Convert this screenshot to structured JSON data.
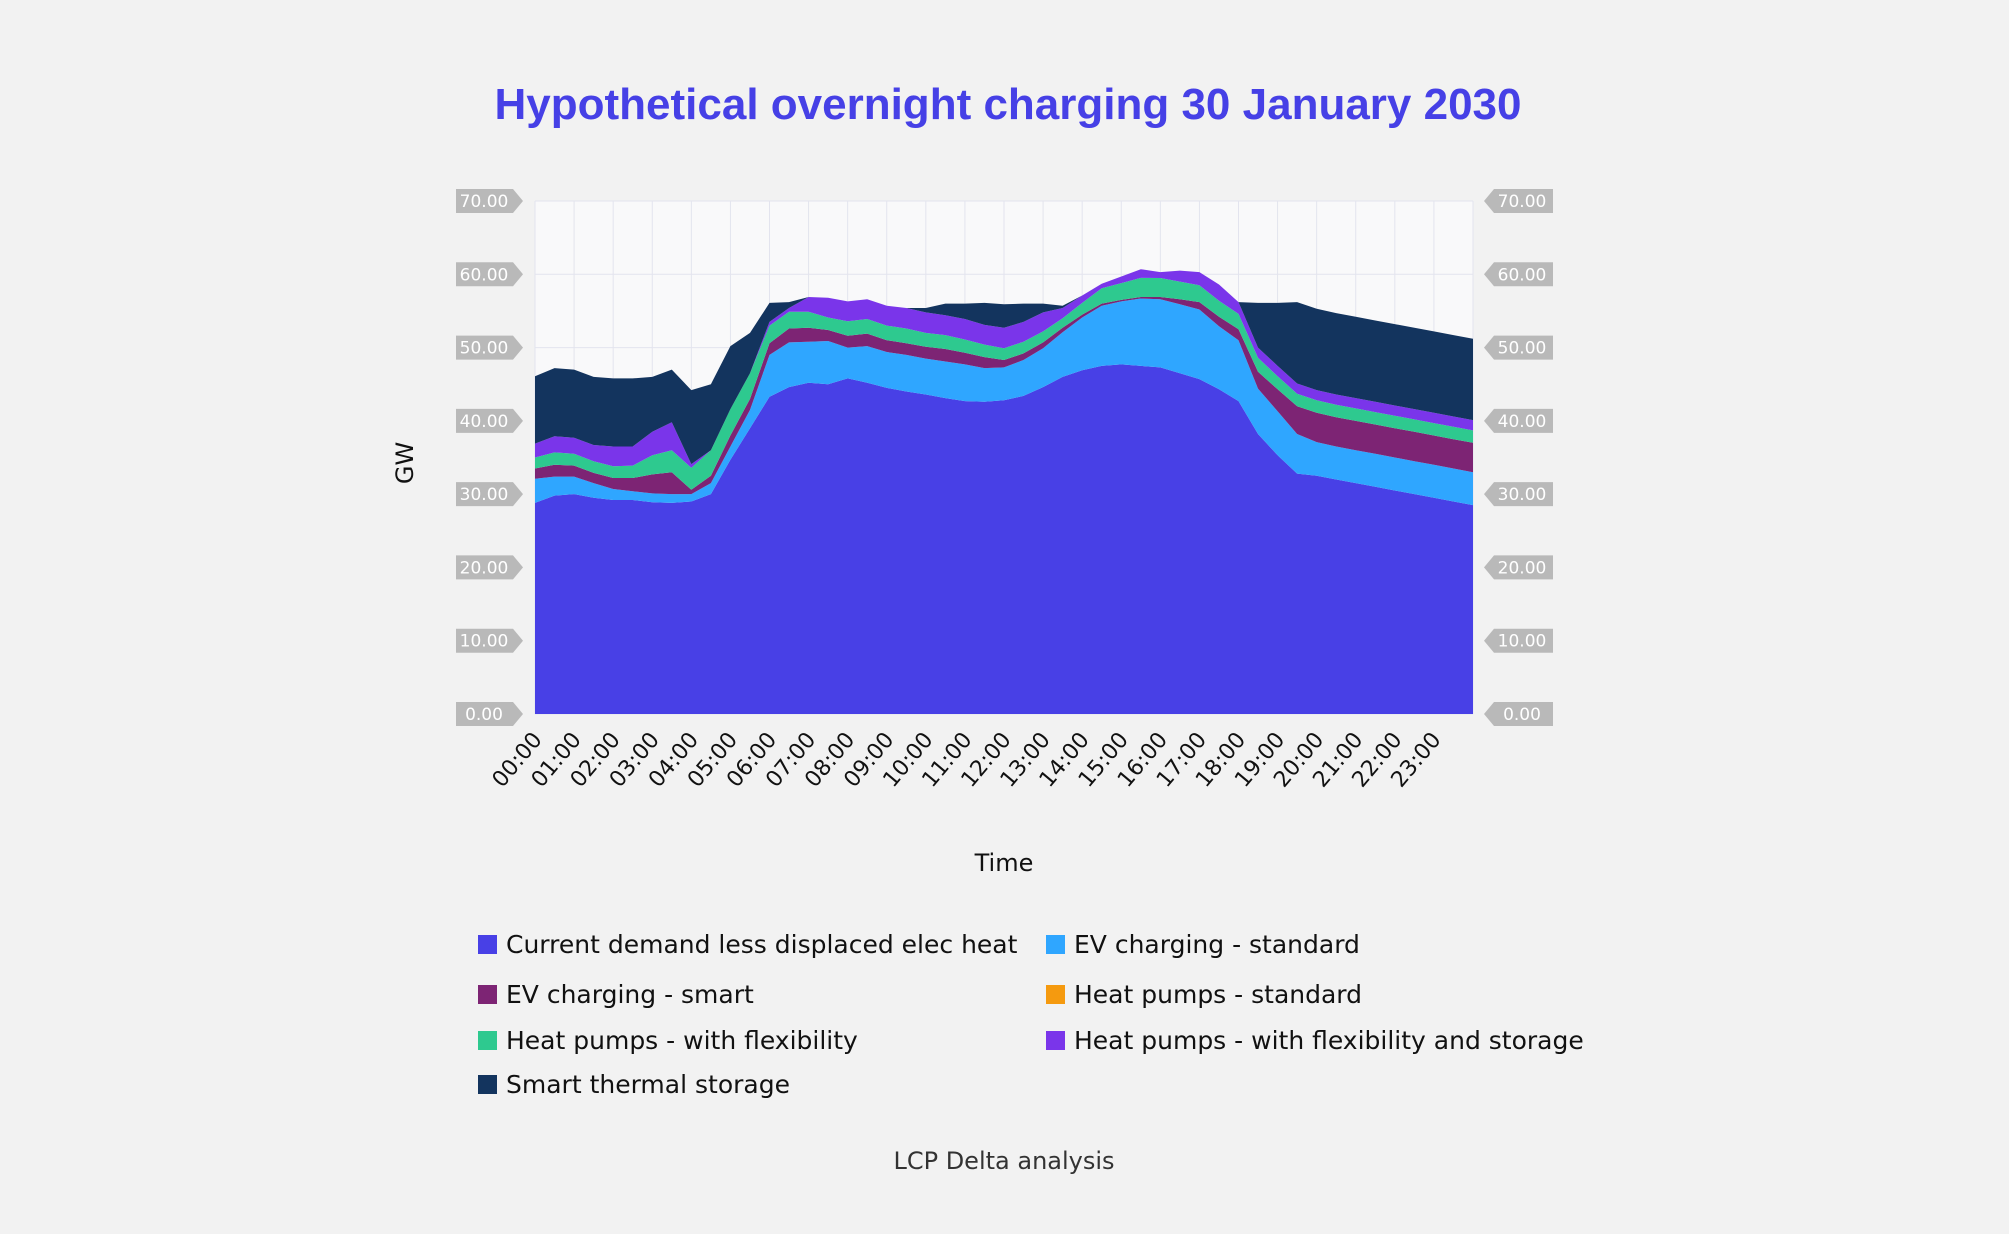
{
  "chart_data": {
    "type": "area",
    "stacked": true,
    "title": "Hypothetical overnight charging 30 January 2030",
    "xlabel": "Time",
    "ylabel": "GW",
    "ylim": [
      0,
      70
    ],
    "yticks": [
      "0.00",
      "10.00",
      "20.00",
      "30.00",
      "40.00",
      "50.00",
      "60.00",
      "70.00"
    ],
    "categories": [
      "00:00",
      "01:00",
      "02:00",
      "03:00",
      "04:00",
      "05:00",
      "06:00",
      "07:00",
      "08:00",
      "09:00",
      "10:00",
      "11:00",
      "12:00",
      "13:00",
      "14:00",
      "15:00",
      "16:00",
      "17:00",
      "18:00",
      "19:00",
      "20:00",
      "21:00",
      "22:00",
      "23:00"
    ],
    "x": [
      0,
      0.5,
      1,
      1.5,
      2,
      2.5,
      3,
      3.5,
      4,
      4.5,
      5,
      5.5,
      6,
      6.5,
      7,
      7.5,
      8,
      8.5,
      9,
      9.5,
      10,
      10.5,
      11,
      11.5,
      12,
      12.5,
      13,
      13.5,
      14,
      14.5,
      15,
      15.5,
      16,
      16.5,
      17,
      17.5,
      18,
      18.5,
      19,
      19.5,
      20,
      20.5,
      21,
      21.5,
      22,
      22.5,
      23,
      23.5,
      24
    ],
    "series": [
      {
        "name": "Current demand less displaced elec heat",
        "color": "#4840e6",
        "values": [
          28.8,
          29.8,
          30.0,
          29.5,
          29.2,
          29.2,
          28.9,
          28.8,
          29.0,
          30.0,
          34.7,
          39.0,
          43.3,
          44.6,
          45.2,
          45.0,
          45.8,
          45.2,
          44.5,
          44.0,
          43.6,
          43.1,
          42.7,
          42.6,
          42.8,
          43.4,
          44.6,
          46.0,
          46.9,
          47.5,
          47.7,
          47.5,
          47.3,
          46.5,
          45.7,
          44.3,
          42.7,
          38.2,
          35.3,
          32.8,
          32.5,
          32.0,
          31.5,
          31.0,
          30.5,
          30.0,
          29.5,
          29.0,
          28.5
        ]
      },
      {
        "name": "EV charging - standard",
        "color": "#2fa6ff",
        "values": [
          3.3,
          2.6,
          2.4,
          2.0,
          1.5,
          1.2,
          1.2,
          1.2,
          1.0,
          1.5,
          1.8,
          2.5,
          5.7,
          6.1,
          5.6,
          5.9,
          4.2,
          5.0,
          4.9,
          5.0,
          4.9,
          5.0,
          5.0,
          4.6,
          4.5,
          4.9,
          5.3,
          6.1,
          7.2,
          8.2,
          8.6,
          9.2,
          9.3,
          9.4,
          9.5,
          8.6,
          8.3,
          6.2,
          6.0,
          5.4,
          4.6,
          4.5,
          4.5,
          4.5,
          4.5,
          4.5,
          4.5,
          4.5,
          4.5
        ]
      },
      {
        "name": "EV charging - smart",
        "color": "#7d2474",
        "values": [
          1.4,
          1.6,
          1.5,
          1.4,
          1.5,
          1.8,
          2.6,
          3.0,
          0.6,
          1.0,
          1.5,
          1.5,
          1.6,
          1.9,
          1.9,
          1.5,
          1.6,
          1.7,
          1.6,
          1.6,
          1.6,
          1.7,
          1.6,
          1.5,
          1.0,
          0.9,
          0.8,
          0.6,
          0.4,
          0.3,
          0.2,
          0.2,
          0.3,
          0.7,
          1.0,
          1.3,
          1.5,
          2.3,
          3.0,
          3.8,
          4.0,
          4.0,
          4.0,
          4.0,
          4.0,
          4.0,
          4.0,
          4.0,
          4.0
        ]
      },
      {
        "name": "Heat pumps - standard",
        "color": "#f59a0f",
        "values": [
          0,
          0,
          0,
          0,
          0,
          0,
          0,
          0,
          0,
          0,
          0,
          0,
          0,
          0,
          0,
          0,
          0,
          0,
          0,
          0,
          0,
          0,
          0,
          0,
          0,
          0,
          0,
          0,
          0,
          0,
          0,
          0,
          0,
          0,
          0,
          0,
          0,
          0,
          0,
          0,
          0,
          0,
          0,
          0,
          0,
          0,
          0,
          0,
          0
        ]
      },
      {
        "name": "Heat pumps - with flexibility",
        "color": "#2ec98f",
        "values": [
          1.5,
          1.7,
          1.6,
          1.6,
          1.6,
          1.7,
          2.6,
          3.0,
          3.0,
          3.5,
          3.6,
          3.5,
          2.4,
          2.3,
          2.2,
          1.7,
          2.0,
          2.0,
          2.0,
          2.0,
          1.9,
          1.9,
          1.8,
          1.7,
          1.6,
          1.6,
          1.5,
          1.3,
          1.6,
          2.1,
          2.3,
          2.6,
          2.6,
          2.4,
          2.3,
          2.2,
          2.1,
          1.9,
          1.8,
          1.7,
          1.7,
          1.7,
          1.7,
          1.7,
          1.7,
          1.7,
          1.7,
          1.7,
          1.7
        ]
      },
      {
        "name": "Heat pumps - with flexibility and storage",
        "color": "#7a35ea",
        "values": [
          1.9,
          2.2,
          2.2,
          2.2,
          2.7,
          2.6,
          3.2,
          3.8,
          0.5,
          0.0,
          0.0,
          0.0,
          0.5,
          0.5,
          2.0,
          2.7,
          2.7,
          2.7,
          2.7,
          2.8,
          2.8,
          2.7,
          2.8,
          2.7,
          2.8,
          2.7,
          2.6,
          1.4,
          1.0,
          0.6,
          0.9,
          1.2,
          0.8,
          1.5,
          1.8,
          2.2,
          1.6,
          1.4,
          1.4,
          1.4,
          1.4,
          1.4,
          1.4,
          1.4,
          1.4,
          1.4,
          1.4,
          1.4,
          1.4
        ]
      },
      {
        "name": "Smart thermal storage",
        "color": "#13345e",
        "values": [
          9.2,
          9.3,
          9.3,
          9.3,
          9.3,
          9.3,
          7.5,
          7.2,
          10.1,
          9.0,
          8.6,
          5.5,
          2.6,
          0.8,
          0.0,
          0.0,
          0.0,
          0.0,
          0.0,
          0.0,
          0.6,
          1.6,
          2.1,
          3.0,
          3.2,
          2.5,
          1.2,
          0.3,
          0.0,
          0.0,
          0.0,
          0.0,
          0.0,
          0.0,
          0.0,
          0.0,
          0.0,
          6.1,
          8.6,
          11.1,
          11.1,
          11.1,
          11.1,
          11.1,
          11.1,
          11.1,
          11.1,
          11.1,
          11.1
        ]
      }
    ],
    "legend": {
      "placement": "bottom",
      "items": [
        "Current demand less displaced elec heat",
        "EV charging - standard",
        "EV charging - smart",
        "Heat pumps - standard",
        "Heat pumps - with flexibility",
        "Heat pumps - with flexibility and storage",
        "Smart thermal storage"
      ]
    },
    "source_note": "LCP Delta analysis",
    "title_color": "#4640e6",
    "plot_background": "#f9f9fa",
    "tick_badge_color": "#b9b9b9"
  }
}
